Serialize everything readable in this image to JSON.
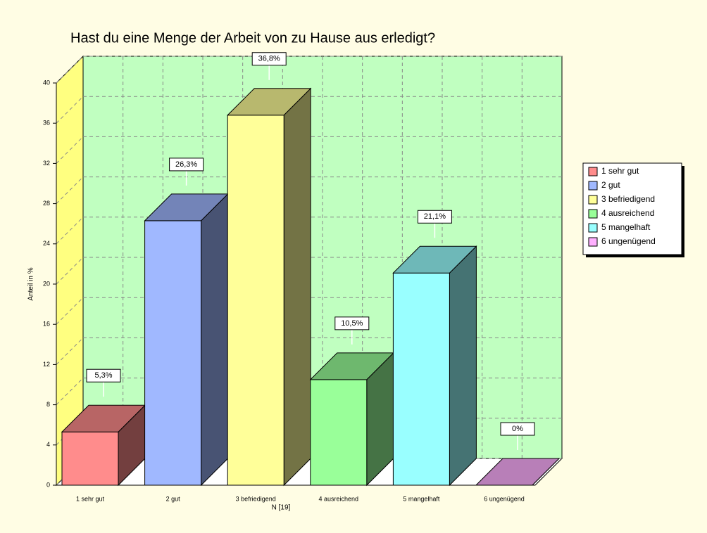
{
  "chart_data": {
    "type": "bar3d",
    "title": "Hast du eine Menge der Arbeit von zu Hause aus erledigt?",
    "x_label": "N [19]",
    "y_label": "Anteil in %",
    "categories": [
      "1 sehr gut",
      "2 gut",
      "3 befriedigend",
      "4 ausreichend",
      "5 mangelhaft",
      "6 ungenügend"
    ],
    "values": [
      5.3,
      26.3,
      36.8,
      10.5,
      21.1,
      0
    ],
    "value_labels": [
      "5,3%",
      "26,3%",
      "36,8%",
      "10,5%",
      "21,1%",
      "0%"
    ],
    "colors": [
      "#ff8c8c",
      "#a0b8ff",
      "#ffff99",
      "#99ff99",
      "#99ffff",
      "#ffb0ff"
    ],
    "ylim": [
      0,
      40
    ],
    "yticks": [
      0,
      4,
      8,
      12,
      16,
      20,
      24,
      28,
      32,
      36,
      40
    ],
    "grid": true,
    "legend": "right"
  }
}
